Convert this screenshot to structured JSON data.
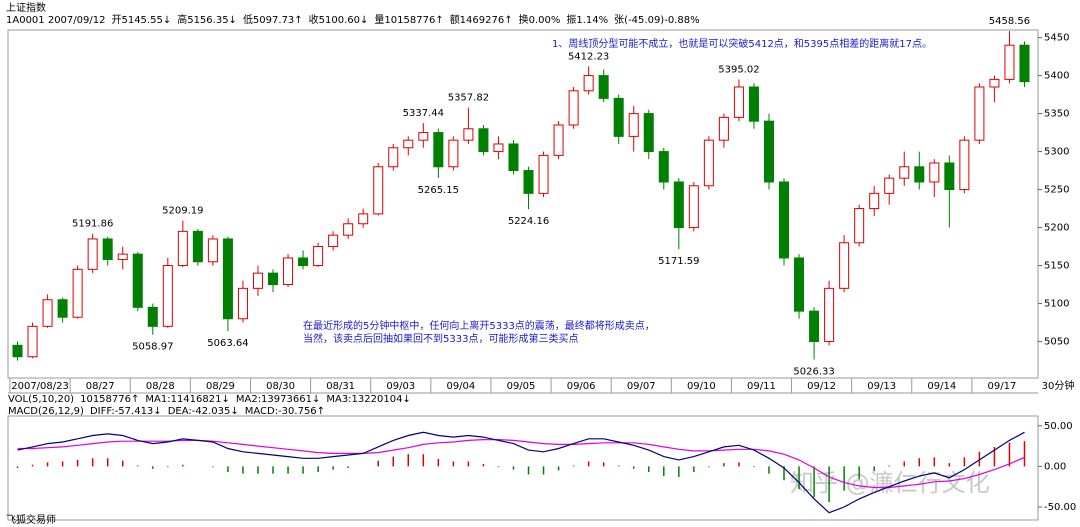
{
  "header": {
    "title": "上证指数",
    "info": [
      "1A0001 2007/09/12",
      "开5145.55↓",
      "高5156.35↓",
      "低5097.73↑",
      "收5100.60↓",
      "量10158776↑",
      "额1469276↑",
      "换0.00%",
      "振1.14%",
      "张(-45.09)-0.88%"
    ],
    "period": "30分钟",
    "vol": [
      "VOL(5,10,20)",
      "10158776↑",
      "MA1:11416821↓",
      "MA2:13973661↓",
      "MA3:13220104↓"
    ],
    "macd": [
      "MACD(26,12,9)",
      "DIFF:-57.413↓",
      "DEA:-42.035↓",
      "MACD:-30.756↑"
    ],
    "notes": [
      "1、周线顶分型可能不成立，也就是可以突破5412点，和5395点相差的距离就17点。",
      "在最近形成的5分钟中枢中，任何向上离开5333点的震荡，最终都将形成卖点，",
      "当然，该卖点后回抽如果回不到5333点，可能形成第三类买点"
    ],
    "watermark": "知乎 @濂仁行文化",
    "footer": "飞狐交易师"
  },
  "chart_data": [
    {
      "type": "candlestick",
      "up_color": "#e00000",
      "down_color": "#008000",
      "dates": [
        "2007/08/23",
        "08/27",
        "08/28",
        "08/29",
        "08/30",
        "08/31",
        "09/03",
        "09/04",
        "09/05",
        "09/06",
        "09/07",
        "09/10",
        "09/11",
        "09/12",
        "09/13",
        "09/14",
        "09/17"
      ],
      "candles": [
        [
          5045,
          5050,
          5025,
          5030
        ],
        [
          5030,
          5075,
          5028,
          5070
        ],
        [
          5070,
          5112,
          5068,
          5105
        ],
        [
          5105,
          5108,
          5075,
          5082
        ],
        [
          5082,
          5150,
          5080,
          5145
        ],
        [
          5145,
          5191.86,
          5140,
          5185
        ],
        [
          5185,
          5188,
          5150,
          5158
        ],
        [
          5158,
          5175,
          5145,
          5165
        ],
        [
          5165,
          5168,
          5090,
          5095
        ],
        [
          5095,
          5100,
          5058.97,
          5070
        ],
        [
          5070,
          5160,
          5068,
          5150
        ],
        [
          5150,
          5209.19,
          5148,
          5195
        ],
        [
          5195,
          5198,
          5150,
          5155
        ],
        [
          5155,
          5190,
          5150,
          5185
        ],
        [
          5185,
          5188,
          5063.64,
          5080
        ],
        [
          5080,
          5130,
          5075,
          5120
        ],
        [
          5120,
          5150,
          5110,
          5140
        ],
        [
          5140,
          5145,
          5115,
          5125
        ],
        [
          5125,
          5165,
          5122,
          5160
        ],
        [
          5160,
          5170,
          5145,
          5150
        ],
        [
          5150,
          5180,
          5148,
          5175
        ],
        [
          5175,
          5195,
          5170,
          5190
        ],
        [
          5190,
          5212,
          5185,
          5205
        ],
        [
          5205,
          5225,
          5200,
          5218
        ],
        [
          5218,
          5285,
          5216,
          5280
        ],
        [
          5280,
          5310,
          5275,
          5305
        ],
        [
          5305,
          5320,
          5295,
          5315
        ],
        [
          5315,
          5337.44,
          5305,
          5325
        ],
        [
          5325,
          5330,
          5265.15,
          5280
        ],
        [
          5280,
          5320,
          5275,
          5315
        ],
        [
          5315,
          5357.82,
          5310,
          5330
        ],
        [
          5330,
          5335,
          5295,
          5300
        ],
        [
          5300,
          5320,
          5290,
          5310
        ],
        [
          5310,
          5315,
          5270,
          5275
        ],
        [
          5275,
          5280,
          5224.16,
          5245
        ],
        [
          5245,
          5300,
          5240,
          5295
        ],
        [
          5295,
          5340,
          5290,
          5335
        ],
        [
          5335,
          5385,
          5330,
          5380
        ],
        [
          5380,
          5412.23,
          5375,
          5400
        ],
        [
          5400,
          5408,
          5365,
          5370
        ],
        [
          5370,
          5375,
          5310,
          5320
        ],
        [
          5320,
          5360,
          5300,
          5350
        ],
        [
          5350,
          5355,
          5290,
          5300
        ],
        [
          5300,
          5305,
          5250,
          5260
        ],
        [
          5260,
          5265,
          5171.59,
          5200
        ],
        [
          5200,
          5260,
          5195,
          5255
        ],
        [
          5255,
          5320,
          5250,
          5315
        ],
        [
          5315,
          5350,
          5305,
          5345
        ],
        [
          5345,
          5395.02,
          5340,
          5385
        ],
        [
          5385,
          5390,
          5330,
          5340
        ],
        [
          5340,
          5350,
          5250,
          5260
        ],
        [
          5260,
          5265,
          5150,
          5160
        ],
        [
          5160,
          5165,
          5080,
          5090
        ],
        [
          5090,
          5095,
          5026.33,
          5050
        ],
        [
          5050,
          5130,
          5045,
          5120
        ],
        [
          5120,
          5190,
          5115,
          5180
        ],
        [
          5180,
          5230,
          5175,
          5225
        ],
        [
          5225,
          5255,
          5215,
          5245
        ],
        [
          5245,
          5270,
          5230,
          5265
        ],
        [
          5265,
          5300,
          5255,
          5280
        ],
        [
          5280,
          5300,
          5250,
          5260
        ],
        [
          5260,
          5290,
          5240,
          5285
        ],
        [
          5285,
          5295,
          5200,
          5250
        ],
        [
          5250,
          5320,
          5245,
          5315
        ],
        [
          5315,
          5390,
          5310,
          5385
        ],
        [
          5385,
          5400,
          5365,
          5395
        ],
        [
          5395,
          5458.56,
          5390,
          5440
        ],
        [
          5440,
          5445,
          5385,
          5392
        ]
      ],
      "annotations": [
        5191.86,
        5209.19,
        5058.97,
        5063.64,
        5337.44,
        5357.82,
        5265.15,
        5224.16,
        5412.23,
        5171.59,
        5395.02,
        5026.33,
        5458.56
      ],
      "ylim": [
        5002,
        5460
      ],
      "yticks": [
        5050,
        5100,
        5150,
        5200,
        5250,
        5300,
        5350,
        5400,
        5450
      ]
    },
    {
      "type": "macd",
      "diff_color": "#000080",
      "dea_color": "#e000e0",
      "up_color": "#e00000",
      "down_color": "#008000",
      "diff": [
        20,
        24,
        28,
        30,
        34,
        38,
        40,
        38,
        32,
        28,
        30,
        34,
        32,
        30,
        22,
        18,
        16,
        14,
        12,
        10,
        10,
        12,
        14,
        16,
        24,
        32,
        38,
        42,
        38,
        36,
        38,
        36,
        32,
        28,
        20,
        18,
        22,
        28,
        34,
        34,
        30,
        26,
        20,
        12,
        8,
        12,
        18,
        24,
        26,
        20,
        10,
        -2,
        -20,
        -40,
        -57,
        -50,
        -40,
        -32,
        -25,
        -18,
        -12,
        -8,
        -14,
        -4,
        8,
        20,
        32,
        42
      ],
      "dea": [
        22,
        22,
        23,
        24,
        26,
        28,
        30,
        31,
        31,
        31,
        31,
        32,
        32,
        31,
        29,
        27,
        25,
        23,
        21,
        19,
        17,
        16,
        16,
        16,
        17,
        20,
        23,
        27,
        29,
        30,
        32,
        33,
        33,
        32,
        30,
        28,
        27,
        27,
        28,
        29,
        29,
        29,
        27,
        24,
        21,
        19,
        19,
        20,
        21,
        21,
        19,
        15,
        8,
        -2,
        -13,
        -20,
        -24,
        -26,
        -26,
        -24,
        -22,
        -19,
        -18,
        -15,
        -10,
        -4,
        3,
        11
      ],
      "hist": [
        -2,
        2,
        5,
        6,
        8,
        10,
        10,
        7,
        1,
        -3,
        -1,
        2,
        0,
        -1,
        -7,
        -9,
        -9,
        -9,
        -9,
        -9,
        -7,
        -4,
        -2,
        0,
        7,
        12,
        15,
        15,
        9,
        6,
        6,
        3,
        -1,
        -4,
        -10,
        -10,
        -5,
        1,
        6,
        5,
        1,
        -3,
        -7,
        -12,
        -13,
        -7,
        -1,
        4,
        5,
        -1,
        -9,
        -17,
        -28,
        -38,
        -44,
        -30,
        -16,
        -6,
        1,
        6,
        10,
        11,
        4,
        11,
        18,
        24,
        29,
        31
      ],
      "ylim": [
        -66,
        62
      ],
      "yticks": [
        {
          "value": 50,
          "label": "50.00"
        },
        {
          "value": 0,
          "label": "0.00"
        },
        {
          "value": -50,
          "label": "-50.00"
        }
      ]
    }
  ]
}
